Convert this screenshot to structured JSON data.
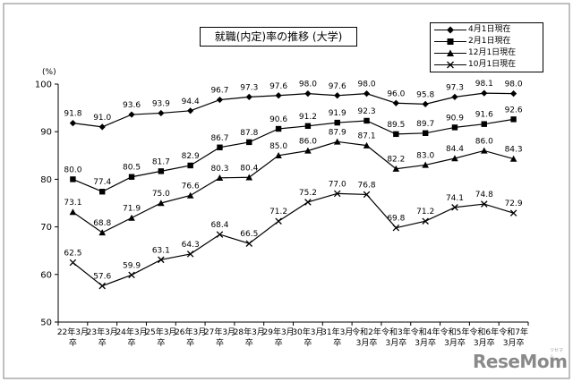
{
  "chart_data": {
    "type": "line",
    "title": "就職(内定)率の推移 (大学)",
    "ylabel": "(%)",
    "ylim": [
      50,
      100
    ],
    "yticks": [
      50,
      60,
      70,
      80,
      90,
      100
    ],
    "grid": false,
    "legend": "top-right",
    "categories": [
      [
        "22年3月",
        "卒"
      ],
      [
        "23年3月",
        "卒"
      ],
      [
        "24年3月",
        "卒"
      ],
      [
        "25年3月",
        "卒"
      ],
      [
        "26年3月",
        "卒"
      ],
      [
        "27年3月",
        "卒"
      ],
      [
        "28年3月",
        "卒"
      ],
      [
        "29年3月",
        "卒"
      ],
      [
        "30年3月",
        "卒"
      ],
      [
        "31年3月",
        "卒"
      ],
      [
        "令和2年",
        "3月卒"
      ],
      [
        "令和3年",
        "3月卒"
      ],
      [
        "令和4年",
        "3月卒"
      ],
      [
        "令和5年",
        "3月卒"
      ],
      [
        "令和6年",
        "3月卒"
      ],
      [
        "令和7年",
        "3月卒"
      ]
    ],
    "series": [
      {
        "name": "4月1日現在",
        "marker": "diamond",
        "values": [
          91.8,
          91.0,
          93.6,
          93.9,
          94.4,
          96.7,
          97.3,
          97.6,
          98.0,
          97.6,
          98.0,
          96.0,
          95.8,
          97.3,
          98.1,
          98.0
        ]
      },
      {
        "name": "2月1日現在",
        "marker": "square",
        "values": [
          80.0,
          77.4,
          80.5,
          81.7,
          82.9,
          86.7,
          87.8,
          90.6,
          91.2,
          91.9,
          92.3,
          89.5,
          89.7,
          90.9,
          91.6,
          92.6
        ]
      },
      {
        "name": "12月1日現在",
        "marker": "triangle",
        "values": [
          73.1,
          68.8,
          71.9,
          75.0,
          76.6,
          80.3,
          80.4,
          85.0,
          86.0,
          87.9,
          87.1,
          82.2,
          83.0,
          84.4,
          86.0,
          84.3
        ]
      },
      {
        "name": "10月1日現在",
        "marker": "x",
        "values": [
          62.5,
          57.6,
          59.9,
          63.1,
          64.3,
          68.4,
          66.5,
          71.2,
          75.2,
          77.0,
          76.8,
          69.8,
          71.2,
          74.1,
          74.8,
          72.9
        ]
      }
    ]
  },
  "brand": {
    "logo_text": "ReseMom",
    "logo_sub": "リセマム"
  },
  "colors": {
    "line": "#000000",
    "frame": "#808080",
    "logo": "#8a8a8a"
  }
}
